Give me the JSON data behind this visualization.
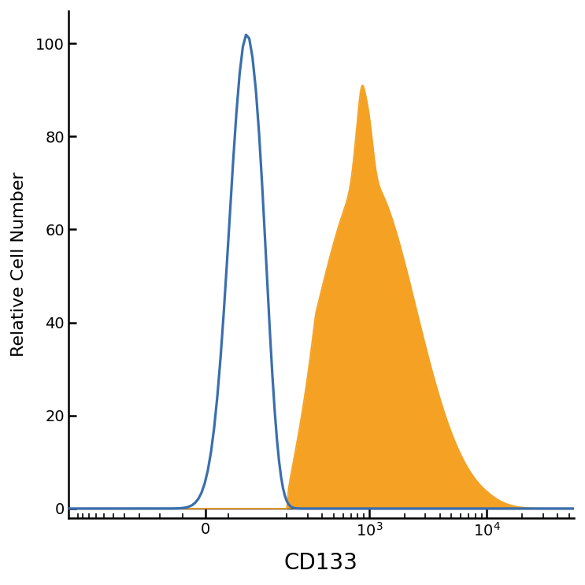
{
  "title": "",
  "xlabel": "CD133",
  "ylabel": "Relative Cell Number",
  "ylim": [
    -2,
    107
  ],
  "yticks": [
    0,
    20,
    40,
    60,
    80,
    100
  ],
  "bg_color": "#ffffff",
  "blue_color": "#3a6fad",
  "orange_color": "#f5a124",
  "blue_linewidth": 2.3,
  "orange_linewidth": 1.2,
  "xlabel_fontsize": 20,
  "ylabel_fontsize": 16,
  "tick_fontsize": 14,
  "linthresh": 100,
  "linscale": 0.35
}
